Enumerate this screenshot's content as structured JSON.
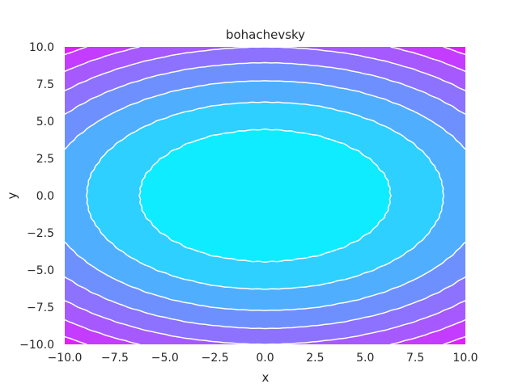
{
  "chart_data": {
    "type": "contour",
    "title": "bohachevsky",
    "xlabel": "x",
    "ylabel": "y",
    "xlim": [
      -10,
      10
    ],
    "ylim": [
      -10,
      10
    ],
    "x_ticks": [
      "−10.0",
      "−7.5",
      "−5.0",
      "−2.5",
      "0.0",
      "2.5",
      "5.0",
      "7.5",
      "10.0"
    ],
    "y_ticks": [
      "−10.0",
      "−7.5",
      "−5.0",
      "−2.5",
      "0.0",
      "2.5",
      "5.0",
      "7.5",
      "10.0"
    ],
    "function": "x^2 + 2y^2 - 0.3cos(3πx) - 0.4cos(4πy) + 0.7",
    "filled": true,
    "colormap": "cool",
    "line_color": "#ffffff",
    "levels": [
      0,
      40,
      80,
      120,
      160,
      200,
      240,
      280,
      320
    ],
    "band_colors": [
      "#10ecff",
      "#2dd0ff",
      "#50aeff",
      "#6e90ff",
      "#8c72ff",
      "#a659ff",
      "#c33cff",
      "#e01fff"
    ],
    "grid": false
  }
}
